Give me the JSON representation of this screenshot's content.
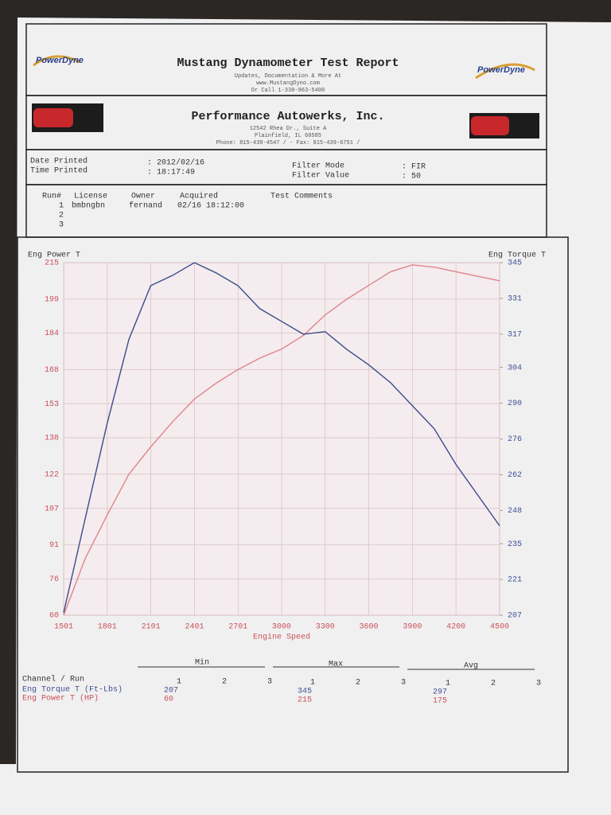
{
  "header": {
    "logo_left": "PowerDyne",
    "logo_right": "PowerDyne",
    "title": "Mustang Dynamometer Test Report",
    "lines": [
      "Updates, Documentation & More At",
      "www.MustangDyno.com",
      "Or Call 1-330-963-5400"
    ]
  },
  "shop": {
    "name": "Performance Autowerks, Inc.",
    "lines": [
      "12542 Rhea Dr., Suite A",
      "Plainfield, IL 60585",
      "Phone: 815-439-4547 /  - Fax: 815-439-6751 /"
    ]
  },
  "info": {
    "items": [
      {
        "label": "Date Printed",
        "value": ": 2012/02/16"
      },
      {
        "label": "Time Printed",
        "value": ": 18:17:49"
      },
      {
        "label": "Filter Mode",
        "value": ": FIR"
      },
      {
        "label": "Filter Value",
        "value": ": 50"
      }
    ]
  },
  "runs": {
    "headers": [
      "Run#",
      "License",
      "Owner",
      "Acquired",
      "Test Comments"
    ],
    "rows": [
      [
        "1",
        "bmbngbn",
        "fernand",
        "02/16 18:12:00"
      ],
      [
        "2"
      ],
      [
        "3"
      ]
    ]
  },
  "chart_data": {
    "type": "line",
    "x_label": "Engine Speed",
    "x": [
      1501,
      1650,
      1800,
      1950,
      2100,
      2250,
      2400,
      2550,
      2700,
      2850,
      3000,
      3150,
      3300,
      3450,
      3600,
      3750,
      3900,
      4050,
      4200,
      4350,
      4500
    ],
    "xlim": [
      1501,
      4500
    ],
    "xticks": [
      1501,
      1801,
      2101,
      2401,
      2701,
      3000,
      3300,
      3600,
      3900,
      4200,
      4500
    ],
    "ylim": [
      60,
      215
    ],
    "yticks": [
      60,
      76,
      91,
      107,
      122,
      138,
      153,
      168,
      184,
      199,
      215
    ],
    "y2lim": [
      207,
      345
    ],
    "y2ticks": [
      207,
      221,
      235,
      248,
      262,
      276,
      290,
      304,
      317,
      331,
      345
    ],
    "grid": true,
    "series": [
      {
        "name": "Eng Power T",
        "color": "#e0848c",
        "values": [
          60,
          85,
          104,
          122,
          134,
          145,
          155,
          162,
          168,
          173,
          177,
          183,
          192,
          199,
          205,
          211,
          214,
          213,
          211,
          209,
          207
        ]
      },
      {
        "name": "Eng Torque T",
        "color": "#3b4a8c",
        "axis": "y2",
        "values": [
          208,
          245,
          282,
          315,
          336,
          340,
          345,
          341,
          336,
          327,
          322,
          317,
          318,
          311,
          305,
          298,
          289,
          280,
          266,
          254,
          242
        ]
      }
    ]
  },
  "summary": {
    "channel_header": "Channel / Run",
    "groups": [
      "Min",
      "Max",
      "Avg"
    ],
    "run_labels": [
      "1",
      "2",
      "3"
    ],
    "rows": [
      {
        "name": "Eng Torque T (Ft-Lbs)",
        "values": [
          "207",
          "345",
          "297"
        ]
      },
      {
        "name": "Eng Power T (HP)",
        "values": [
          "60",
          "215",
          "175"
        ]
      }
    ]
  }
}
